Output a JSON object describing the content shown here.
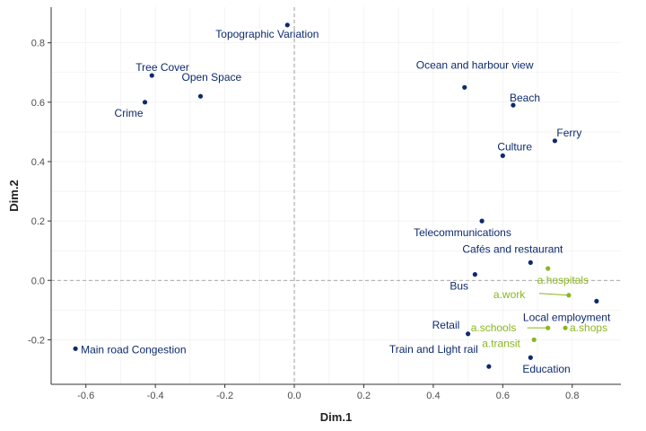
{
  "chart_data": {
    "type": "scatter",
    "xlabel": "Dim.1",
    "ylabel": "Dim.2",
    "xlim": [
      -0.7,
      0.94
    ],
    "ylim": [
      -0.35,
      0.92
    ],
    "xticks": [
      -0.6,
      -0.4,
      -0.2,
      0.0,
      0.2,
      0.4,
      0.6,
      0.8
    ],
    "xtick_labels": [
      "-0.6",
      "-0.4",
      "-0.2",
      "0.0",
      "0.2",
      "0.4",
      "0.6",
      "0.8"
    ],
    "yticks": [
      -0.2,
      0.0,
      0.2,
      0.4,
      0.6,
      0.8
    ],
    "ytick_labels": [
      "-0.2",
      "0.0",
      "0.2",
      "0.4",
      "0.6",
      "0.8"
    ],
    "reference_lines": {
      "x": 0,
      "y": 0
    },
    "grid": true,
    "colors": {
      "active": "#0d2a6e",
      "supplementary": "#8ab61f"
    },
    "series": [
      {
        "role": "active",
        "points": [
          {
            "label": "Topographic Variation",
            "x": -0.02,
            "y": 0.86
          },
          {
            "label": "Tree Cover",
            "x": -0.41,
            "y": 0.69
          },
          {
            "label": "Open Space",
            "x": -0.27,
            "y": 0.62
          },
          {
            "label": "Crime",
            "x": -0.43,
            "y": 0.6
          },
          {
            "label": "Ocean and harbour view",
            "x": 0.49,
            "y": 0.65
          },
          {
            "label": "Beach",
            "x": 0.63,
            "y": 0.59
          },
          {
            "label": "Ferry",
            "x": 0.75,
            "y": 0.47
          },
          {
            "label": "Culture",
            "x": 0.6,
            "y": 0.42
          },
          {
            "label": "Telecommunications",
            "x": 0.54,
            "y": 0.2
          },
          {
            "label": "Cafés and restaurant",
            "x": 0.68,
            "y": 0.06
          },
          {
            "label": "Bus",
            "x": 0.52,
            "y": 0.02
          },
          {
            "label": "Local employment",
            "x": 0.87,
            "y": -0.07
          },
          {
            "label": "Retail",
            "x": 0.5,
            "y": -0.18
          },
          {
            "label": "Education",
            "x": 0.68,
            "y": -0.26
          },
          {
            "label": "Train and Light rail",
            "x": 0.56,
            "y": -0.29
          },
          {
            "label": "Main road Congestion",
            "x": -0.63,
            "y": -0.23
          }
        ]
      },
      {
        "role": "supplementary",
        "points": [
          {
            "label": "a.hospitals",
            "x": 0.73,
            "y": 0.04
          },
          {
            "label": "a.work",
            "x": 0.79,
            "y": -0.05
          },
          {
            "label": "a.schools",
            "x": 0.73,
            "y": -0.16
          },
          {
            "label": "a.shops",
            "x": 0.78,
            "y": -0.16
          },
          {
            "label": "a.transit",
            "x": 0.69,
            "y": -0.2
          }
        ]
      }
    ]
  }
}
